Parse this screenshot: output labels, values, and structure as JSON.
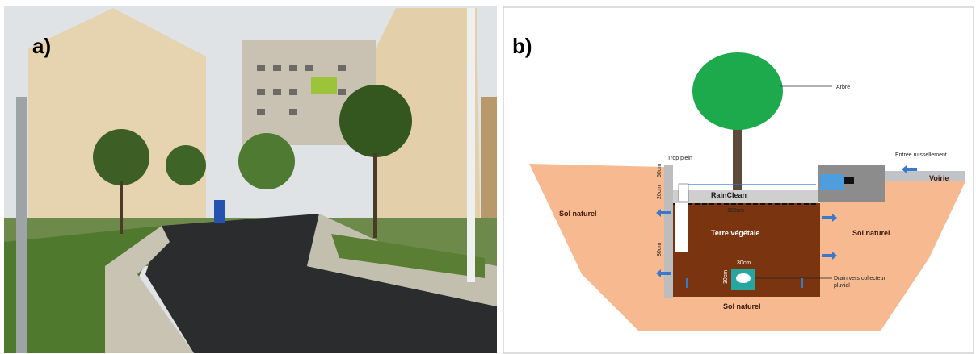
{
  "photo": {
    "label": "a)"
  },
  "diagram": {
    "label": "b)",
    "labels": [
      "Arbre",
      "Trop plein",
      "Entrée ruissellement",
      "Voirie",
      "RainClean",
      "50cm",
      "20cm",
      "180cm",
      "Sol naturel",
      "Terre végétale",
      "Sol naturel",
      "80cm",
      "30cm",
      "30cm",
      "Drain vers collecteur",
      "pluvial",
      "Sol naturel"
    ]
  }
}
